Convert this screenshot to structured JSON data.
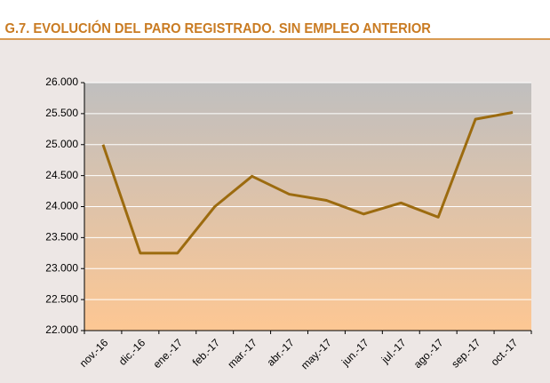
{
  "chart_data": {
    "type": "line",
    "title": "G.7.  EVOLUCIÓN DEL PARO REGISTRADO. SIN EMPLEO ANTERIOR",
    "categories": [
      "nov.-16",
      "dic.-16",
      "ene.-17",
      "feb.-17",
      "mar.-17",
      "abr.-17",
      "may.-17",
      "jun.-17",
      "jul.-17",
      "ago.-17",
      "sep.-17",
      "oct.-17"
    ],
    "values": [
      25000,
      23250,
      23250,
      24000,
      24490,
      24200,
      24100,
      23880,
      24060,
      23830,
      25410,
      25520
    ],
    "color": "#9c6b0f",
    "ylim": [
      22000,
      26000
    ],
    "yticks": [
      {
        "value": 22000,
        "label": "22.000"
      },
      {
        "value": 22500,
        "label": "22.500"
      },
      {
        "value": 23000,
        "label": "23.000"
      },
      {
        "value": 23500,
        "label": "23.500"
      },
      {
        "value": 24000,
        "label": "24.000"
      },
      {
        "value": 24500,
        "label": "24.500"
      },
      {
        "value": 25000,
        "label": "25.000"
      },
      {
        "value": 25500,
        "label": "25.500"
      },
      {
        "value": 26000,
        "label": "26.000"
      }
    ],
    "grid": true
  }
}
